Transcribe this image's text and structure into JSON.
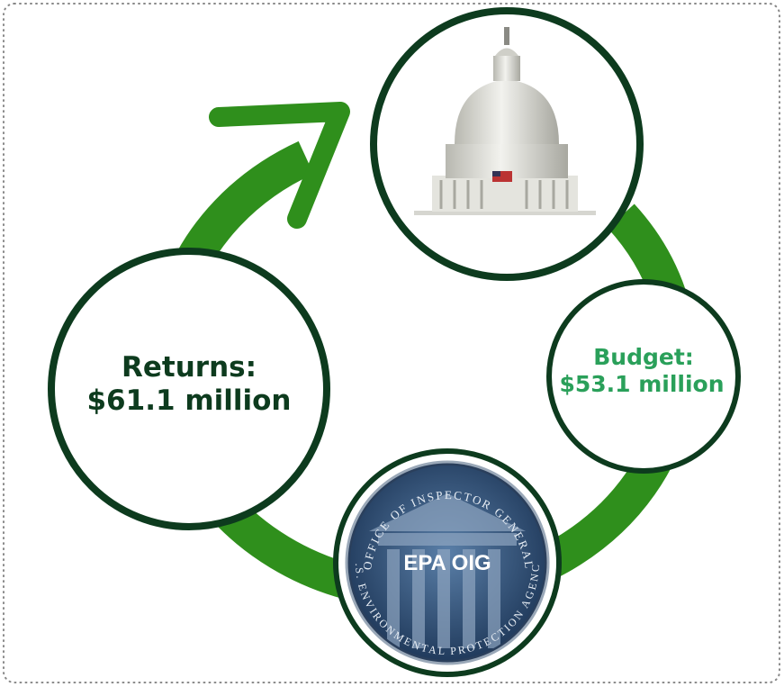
{
  "nodes": {
    "returns": {
      "label": "Returns:",
      "value": "$61.1 million"
    },
    "budget": {
      "label": "Budget:",
      "value": "$53.1 million"
    },
    "seal": {
      "label": "EPA OIG",
      "top_text": "OFFICE OF INSPECTOR GENERAL",
      "bottom_text": "U.S. ENVIRONMENTAL PROTECTION AGENCY"
    }
  }
}
